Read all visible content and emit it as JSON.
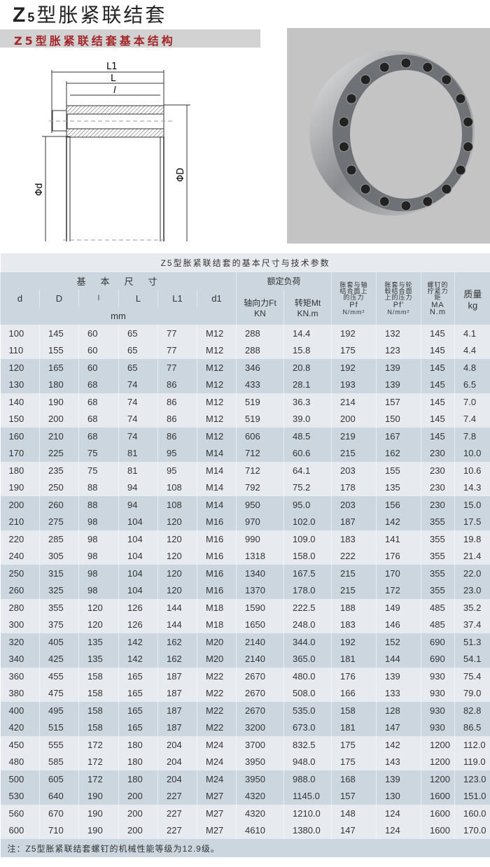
{
  "header": {
    "title_prefix": "Z",
    "title_sub": "5",
    "title_rest": "型胀紧联结套",
    "section_title": "Z5型胀紧联结套基本结构"
  },
  "diagram": {
    "labels": {
      "L1": "L1",
      "L": "L",
      "l": "l",
      "d": "Φd",
      "D": "ΦD"
    }
  },
  "photo": {
    "alt": "expansion sleeve product photo"
  },
  "table": {
    "caption": "Z5型胀紧联结套的基本尺寸与技术参数",
    "group_basic": "基　本　尺　寸",
    "group_load": "额定负荷",
    "unit_mm": "mm",
    "columns": [
      "d",
      "D",
      "l",
      "L",
      "L1",
      "d1"
    ],
    "col_ft": "轴向力Ft",
    "col_ft_unit": "KN",
    "col_mt": "转矩Mt",
    "col_mt_unit": "KN.m",
    "col_pf": "胀套与轴结合面上的压力",
    "col_pf_sym": "Pf",
    "col_pf_unit": "N/mm²",
    "col_pf2": "胀套与轮毂结合面上的压力",
    "col_pf2_sym": "Pf'",
    "col_pf2_unit": "N/mm²",
    "col_ma": "螺钉的拧紧力矩",
    "col_ma_sym": "MA",
    "col_ma_unit": "N.m",
    "col_mass": "质量",
    "col_mass_unit": "kg",
    "rows": [
      [
        "100",
        "145",
        "60",
        "65",
        "77",
        "M12",
        "288",
        "14.4",
        "192",
        "132",
        "145",
        "4.1"
      ],
      [
        "110",
        "155",
        "60",
        "65",
        "77",
        "M12",
        "288",
        "15.8",
        "175",
        "123",
        "145",
        "4.4"
      ],
      [
        "120",
        "165",
        "60",
        "65",
        "77",
        "M12",
        "346",
        "20.8",
        "192",
        "139",
        "145",
        "4.8"
      ],
      [
        "130",
        "180",
        "68",
        "74",
        "86",
        "M12",
        "433",
        "28.1",
        "193",
        "139",
        "145",
        "6.5"
      ],
      [
        "140",
        "190",
        "68",
        "74",
        "86",
        "M12",
        "519",
        "36.3",
        "214",
        "157",
        "145",
        "7.0"
      ],
      [
        "150",
        "200",
        "68",
        "74",
        "86",
        "M12",
        "519",
        "39.0",
        "200",
        "150",
        "145",
        "7.4"
      ],
      [
        "160",
        "210",
        "68",
        "74",
        "86",
        "M12",
        "606",
        "48.5",
        "219",
        "167",
        "145",
        "7.8"
      ],
      [
        "170",
        "225",
        "75",
        "81",
        "95",
        "M14",
        "712",
        "60.6",
        "215",
        "162",
        "230",
        "10.0"
      ],
      [
        "180",
        "235",
        "75",
        "81",
        "95",
        "M14",
        "712",
        "64.1",
        "203",
        "155",
        "230",
        "10.6"
      ],
      [
        "190",
        "250",
        "88",
        "94",
        "108",
        "M14",
        "792",
        "75.2",
        "178",
        "135",
        "230",
        "14.3"
      ],
      [
        "200",
        "260",
        "88",
        "94",
        "108",
        "M14",
        "950",
        "95.0",
        "203",
        "156",
        "230",
        "15.0"
      ],
      [
        "210",
        "275",
        "98",
        "104",
        "120",
        "M16",
        "970",
        "102.0",
        "187",
        "142",
        "355",
        "17.5"
      ],
      [
        "220",
        "285",
        "98",
        "104",
        "120",
        "M16",
        "990",
        "109.0",
        "183",
        "141",
        "355",
        "19.8"
      ],
      [
        "240",
        "305",
        "98",
        "104",
        "120",
        "M16",
        "1318",
        "158.0",
        "222",
        "176",
        "355",
        "21.4"
      ],
      [
        "250",
        "315",
        "98",
        "104",
        "120",
        "M16",
        "1340",
        "167.5",
        "215",
        "170",
        "355",
        "22.0"
      ],
      [
        "260",
        "325",
        "98",
        "104",
        "120",
        "M16",
        "1370",
        "178.0",
        "215",
        "172",
        "355",
        "23.0"
      ],
      [
        "280",
        "355",
        "120",
        "126",
        "144",
        "M18",
        "1590",
        "222.5",
        "188",
        "149",
        "485",
        "35.2"
      ],
      [
        "300",
        "375",
        "120",
        "126",
        "144",
        "M18",
        "1650",
        "248.0",
        "183",
        "146",
        "485",
        "37.4"
      ],
      [
        "320",
        "405",
        "135",
        "142",
        "162",
        "M20",
        "2140",
        "344.0",
        "192",
        "152",
        "690",
        "51.3"
      ],
      [
        "340",
        "425",
        "135",
        "142",
        "162",
        "M20",
        "2140",
        "365.0",
        "181",
        "144",
        "690",
        "54.1"
      ],
      [
        "360",
        "455",
        "158",
        "165",
        "187",
        "M22",
        "2670",
        "480.0",
        "176",
        "139",
        "930",
        "75.4"
      ],
      [
        "380",
        "475",
        "158",
        "165",
        "187",
        "M22",
        "2670",
        "508.0",
        "166",
        "133",
        "930",
        "79.0"
      ],
      [
        "400",
        "495",
        "158",
        "165",
        "187",
        "M22",
        "2670",
        "535.0",
        "158",
        "128",
        "930",
        "82.8"
      ],
      [
        "420",
        "515",
        "158",
        "165",
        "187",
        "M22",
        "3200",
        "673.0",
        "181",
        "147",
        "930",
        "86.5"
      ],
      [
        "450",
        "555",
        "172",
        "180",
        "204",
        "M24",
        "3700",
        "832.5",
        "175",
        "142",
        "1200",
        "112.0"
      ],
      [
        "480",
        "585",
        "172",
        "180",
        "204",
        "M24",
        "3950",
        "948.0",
        "175",
        "143",
        "1200",
        "119.0"
      ],
      [
        "500",
        "605",
        "172",
        "180",
        "204",
        "M24",
        "3950",
        "988.0",
        "168",
        "139",
        "1200",
        "123.0"
      ],
      [
        "530",
        "640",
        "190",
        "200",
        "227",
        "M27",
        "4320",
        "1145.0",
        "157",
        "130",
        "1600",
        "151.0"
      ],
      [
        "560",
        "670",
        "190",
        "200",
        "227",
        "M27",
        "4320",
        "1210.0",
        "148",
        "124",
        "1600",
        "160.0"
      ],
      [
        "600",
        "710",
        "190",
        "200",
        "227",
        "M27",
        "4610",
        "1380.0",
        "147",
        "124",
        "1600",
        "170.0"
      ]
    ],
    "note": "注：Z5型胀紧联结套螺钉的机械性能等级为12.9级。"
  },
  "colors": {
    "accent_red": "#a3262a",
    "row_light": "#e7eaef",
    "row_dark": "#cbd6de"
  }
}
